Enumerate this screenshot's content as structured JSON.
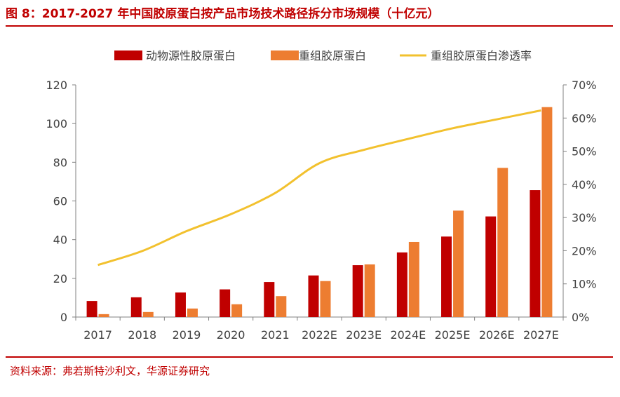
{
  "title": "图 8：2017-2027 年中国胶原蛋白按产品市场技术路径拆分市场规模（十亿元）",
  "source": "资料来源：弗若斯特沙利文，华源证券研究",
  "colors": {
    "accent": "#c00000",
    "animal": "#c00000",
    "recombinant": "#ed7d31",
    "rate": "#f2c12e"
  },
  "chart_data": {
    "type": "bar",
    "categories": [
      "2017",
      "2018",
      "2019",
      "2020",
      "2021",
      "2022E",
      "2023E",
      "2024E",
      "2025E",
      "2026E",
      "2027E"
    ],
    "series": [
      {
        "name": "动物源性胶原蛋白",
        "type": "bar",
        "axis": "left",
        "values": [
          8.3,
          10.2,
          12.7,
          14.3,
          18.1,
          21.5,
          26.8,
          33.4,
          41.6,
          52.0,
          65.6
        ]
      },
      {
        "name": "重组胶原蛋白",
        "type": "bar",
        "axis": "left",
        "values": [
          1.5,
          2.6,
          4.4,
          6.6,
          10.8,
          18.6,
          27.2,
          38.8,
          55.0,
          77.1,
          108.5
        ]
      },
      {
        "name": "重组胶原蛋白渗透率",
        "type": "line",
        "axis": "right",
        "values": [
          0.157,
          0.199,
          0.259,
          0.31,
          0.374,
          0.464,
          0.504,
          0.537,
          0.569,
          0.596,
          0.623
        ]
      }
    ],
    "left_axis": {
      "ylim": [
        0,
        120
      ],
      "ticks": [
        0,
        20,
        40,
        60,
        80,
        100,
        120
      ]
    },
    "right_axis": {
      "ylim": [
        0,
        0.7
      ],
      "tick_labels": [
        "0%",
        "10%",
        "20%",
        "30%",
        "40%",
        "50%",
        "60%",
        "70%"
      ]
    },
    "legend_position": "top",
    "grid": false
  }
}
